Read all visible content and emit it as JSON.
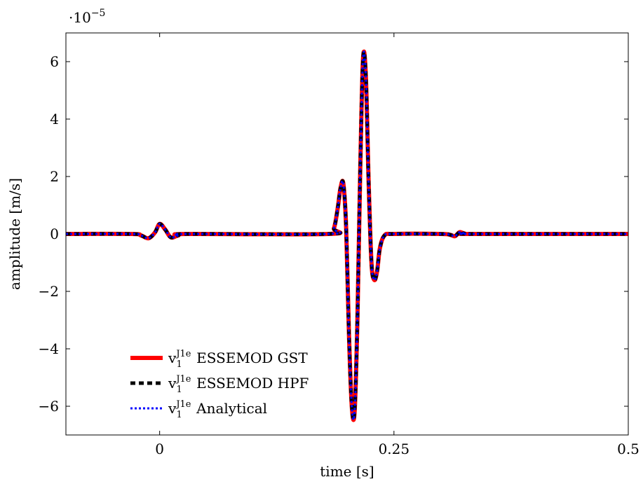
{
  "chart_data": {
    "type": "line",
    "xlabel": "time [s]",
    "ylabel": "amplitude [m/s]",
    "y_multiplier": "·10",
    "y_multiplier_exponent": "−5",
    "xlim": [
      -0.1,
      0.5
    ],
    "ylim": [
      -7,
      7
    ],
    "x_ticks": [
      0,
      0.25,
      0.5
    ],
    "x_tick_labels": [
      "0",
      "0.25",
      "0.5"
    ],
    "y_ticks": [
      -6,
      -4,
      -2,
      0,
      2,
      4,
      6
    ],
    "y_tick_labels": [
      "−6",
      "−4",
      "−2",
      "0",
      "2",
      "4",
      "6"
    ],
    "grid": false,
    "legend_position": "bottom-left",
    "x": [
      -0.1,
      -0.03,
      -0.02,
      -0.012,
      -0.005,
      0.0,
      0.006,
      0.012,
      0.02,
      0.03,
      0.18,
      0.186,
      0.19,
      0.193,
      0.196,
      0.199,
      0.202,
      0.205,
      0.208,
      0.211,
      0.214,
      0.217,
      0.22,
      0.223,
      0.226,
      0.229,
      0.232,
      0.235,
      0.24,
      0.25,
      0.3,
      0.31,
      0.315,
      0.32,
      0.325,
      0.335,
      0.5
    ],
    "series": [
      {
        "name_main": "v",
        "name_sub": "1",
        "name_sup": "J1e",
        "name_rest": " ESSEMOD GST",
        "color": "#ff0000",
        "style": "solid",
        "y": [
          0,
          0,
          -0.05,
          -0.15,
          0.05,
          0.35,
          0.15,
          -0.12,
          -0.05,
          0,
          0,
          0.2,
          0.9,
          1.6,
          1.75,
          0.2,
          -3.5,
          -6.0,
          -6.2,
          -3.0,
          2.2,
          6.1,
          5.5,
          1.8,
          -1.0,
          -1.6,
          -1.3,
          -0.5,
          -0.05,
          0,
          0,
          -0.03,
          -0.08,
          0.06,
          0.02,
          0,
          0
        ]
      },
      {
        "name_main": "v",
        "name_sub": "1",
        "name_sup": "J1e",
        "name_rest": " ESSEMOD HPF",
        "color": "#000000",
        "style": "dashed",
        "y": [
          0,
          0,
          -0.05,
          -0.15,
          0.05,
          0.35,
          0.15,
          -0.12,
          -0.05,
          0,
          0,
          0.2,
          0.9,
          1.6,
          1.75,
          0.2,
          -3.5,
          -6.0,
          -6.2,
          -3.0,
          2.2,
          6.1,
          5.5,
          1.8,
          -1.0,
          -1.6,
          -1.3,
          -0.5,
          -0.05,
          0,
          0,
          -0.03,
          -0.08,
          0.06,
          0.02,
          0,
          0
        ]
      },
      {
        "name_main": "v",
        "name_sub": "1",
        "name_sup": "J1e",
        "name_rest": " Analytical",
        "color": "#0000ff",
        "style": "dotted",
        "y": [
          0,
          0,
          -0.05,
          -0.15,
          0.05,
          0.35,
          0.15,
          -0.12,
          -0.05,
          0,
          0,
          0.2,
          0.9,
          1.6,
          1.75,
          0.2,
          -3.5,
          -6.0,
          -6.2,
          -3.0,
          2.2,
          6.1,
          5.5,
          1.8,
          -1.0,
          -1.6,
          -1.3,
          -0.5,
          -0.05,
          0,
          0,
          -0.03,
          -0.08,
          0.06,
          0.02,
          0,
          0
        ]
      }
    ]
  }
}
